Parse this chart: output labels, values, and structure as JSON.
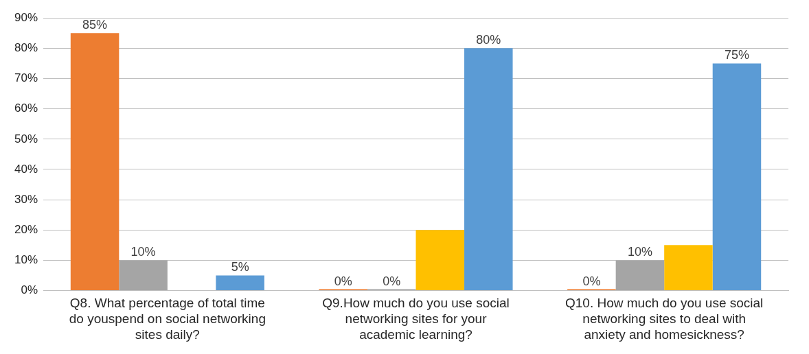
{
  "chart_data": {
    "type": "bar",
    "categories": [
      "Q8. What percentage of total time do youspend on social networking sites daily?",
      "Q9.How much do you use social networking sites for your academic learning?",
      "Q10. How much do you use social networking sites to deal with anxiety and homesickness?"
    ],
    "series": [
      {
        "color": "#ed7d31",
        "values": [
          85,
          0,
          0
        ],
        "value_labels": [
          "85%",
          "0%",
          "0%"
        ]
      },
      {
        "color": "#a5a5a5",
        "values": [
          10,
          0,
          10
        ],
        "value_labels": [
          "10%",
          "0%",
          "10%"
        ]
      },
      {
        "color": "#ffc000",
        "values": [
          null,
          20,
          15
        ],
        "value_labels": [
          null,
          null,
          null
        ]
      },
      {
        "color": "#5b9bd5",
        "values": [
          5,
          80,
          75
        ],
        "value_labels": [
          "5%",
          "80%",
          "75%"
        ]
      }
    ],
    "ylim": [
      0,
      90
    ],
    "yticks": [
      {
        "value": 0,
        "label": "0%"
      },
      {
        "value": 10,
        "label": "10%"
      },
      {
        "value": 20,
        "label": "20%"
      },
      {
        "value": 30,
        "label": "30%"
      },
      {
        "value": 40,
        "label": "40%"
      },
      {
        "value": 50,
        "label": "50%"
      },
      {
        "value": 60,
        "label": "60%"
      },
      {
        "value": 70,
        "label": "70%"
      },
      {
        "value": 80,
        "label": "80%"
      },
      {
        "value": 90,
        "label": "90%"
      }
    ],
    "grid": "y",
    "legend": false
  }
}
